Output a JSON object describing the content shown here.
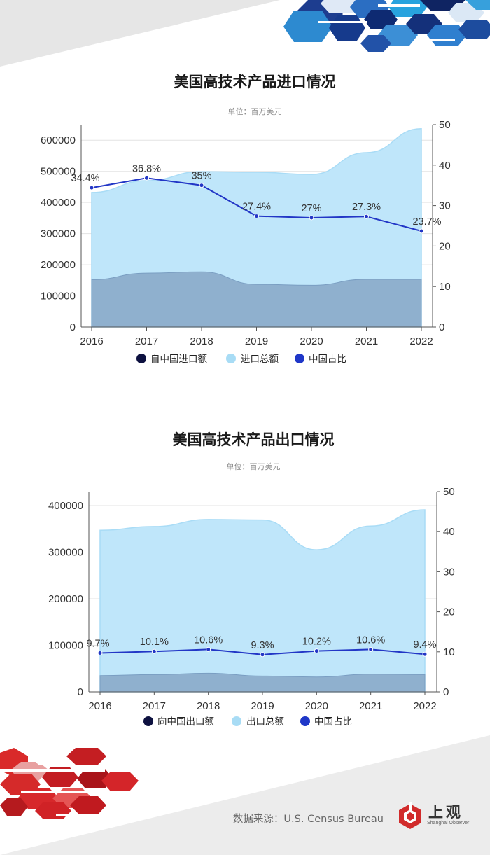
{
  "chart_data": [
    {
      "type": "area",
      "title": "美国高技术产品进口情况",
      "unit": "单位：百万美元",
      "categories": [
        "2016",
        "2017",
        "2018",
        "2019",
        "2020",
        "2021",
        "2022"
      ],
      "left_axis": {
        "min": 0,
        "max": 650000,
        "ticks": [
          0,
          100000,
          200000,
          300000,
          400000,
          500000,
          600000
        ],
        "tick_labels": [
          "0",
          "100000",
          "200000",
          "300000",
          "400000",
          "500000",
          "600000"
        ]
      },
      "right_axis": {
        "min": 0,
        "max": 50,
        "ticks": [
          0,
          10,
          20,
          30,
          40,
          50
        ],
        "tick_labels": [
          "0",
          "10",
          "20",
          "30",
          "40",
          "50"
        ]
      },
      "series": [
        {
          "name": "自中国进口额",
          "kind": "area",
          "axis": "left",
          "values": [
            152000,
            173000,
            177000,
            137000,
            134000,
            153000,
            153000
          ]
        },
        {
          "name": "进口总额",
          "kind": "area",
          "axis": "left",
          "values": [
            432000,
            470000,
            499000,
            497000,
            490000,
            560000,
            637000
          ]
        },
        {
          "name": "中国占比",
          "kind": "line",
          "axis": "right",
          "values": [
            34.4,
            36.8,
            35,
            27.4,
            27,
            27.3,
            23.7
          ],
          "labels": [
            "34.4%",
            "36.8%",
            "35%",
            "27.4%",
            "27%",
            "27.3%",
            "23.7%"
          ]
        }
      ],
      "colors": {
        "china": "#8fb0ce",
        "total": "#bfe6fa",
        "ratio": "#2236c6",
        "legend_china": "#0d1140",
        "legend_total": "#a8dcf5",
        "legend_ratio": "#1f37c8"
      }
    },
    {
      "type": "area",
      "title": "美国高技术产品出口情况",
      "unit": "单位：百万美元",
      "categories": [
        "2016",
        "2017",
        "2018",
        "2019",
        "2020",
        "2021",
        "2022"
      ],
      "left_axis": {
        "min": 0,
        "max": 430000,
        "ticks": [
          0,
          100000,
          200000,
          300000,
          400000
        ],
        "tick_labels": [
          "0",
          "100000",
          "200000",
          "300000",
          "400000"
        ]
      },
      "right_axis": {
        "min": 0,
        "max": 50,
        "ticks": [
          0,
          10,
          20,
          30,
          40,
          50
        ],
        "tick_labels": [
          "0",
          "10",
          "20",
          "30",
          "40",
          "50"
        ]
      },
      "series": [
        {
          "name": "向中国出口额",
          "kind": "area",
          "axis": "left",
          "values": [
            35000,
            37000,
            40000,
            34000,
            32000,
            38000,
            37000
          ]
        },
        {
          "name": "出口总额",
          "kind": "area",
          "axis": "left",
          "values": [
            347000,
            355000,
            370000,
            369000,
            305000,
            356000,
            391000
          ]
        },
        {
          "name": "中国占比",
          "kind": "line",
          "axis": "right",
          "values": [
            9.7,
            10.1,
            10.6,
            9.3,
            10.2,
            10.6,
            9.4
          ],
          "labels": [
            "9.7%",
            "10.1%",
            "10.6%",
            "9.3%",
            "10.2%",
            "10.6%",
            "9.4%"
          ]
        }
      ],
      "colors": {
        "china": "#8fb0ce",
        "total": "#bfe6fa",
        "ratio": "#2236c6",
        "legend_china": "#0d1140",
        "legend_total": "#a8dcf5",
        "legend_ratio": "#1f37c8"
      }
    }
  ],
  "footer": {
    "source": "数据来源：U.S. Census Bureau",
    "logo_main": "上观",
    "logo_sub": "Shanghai Observer"
  }
}
